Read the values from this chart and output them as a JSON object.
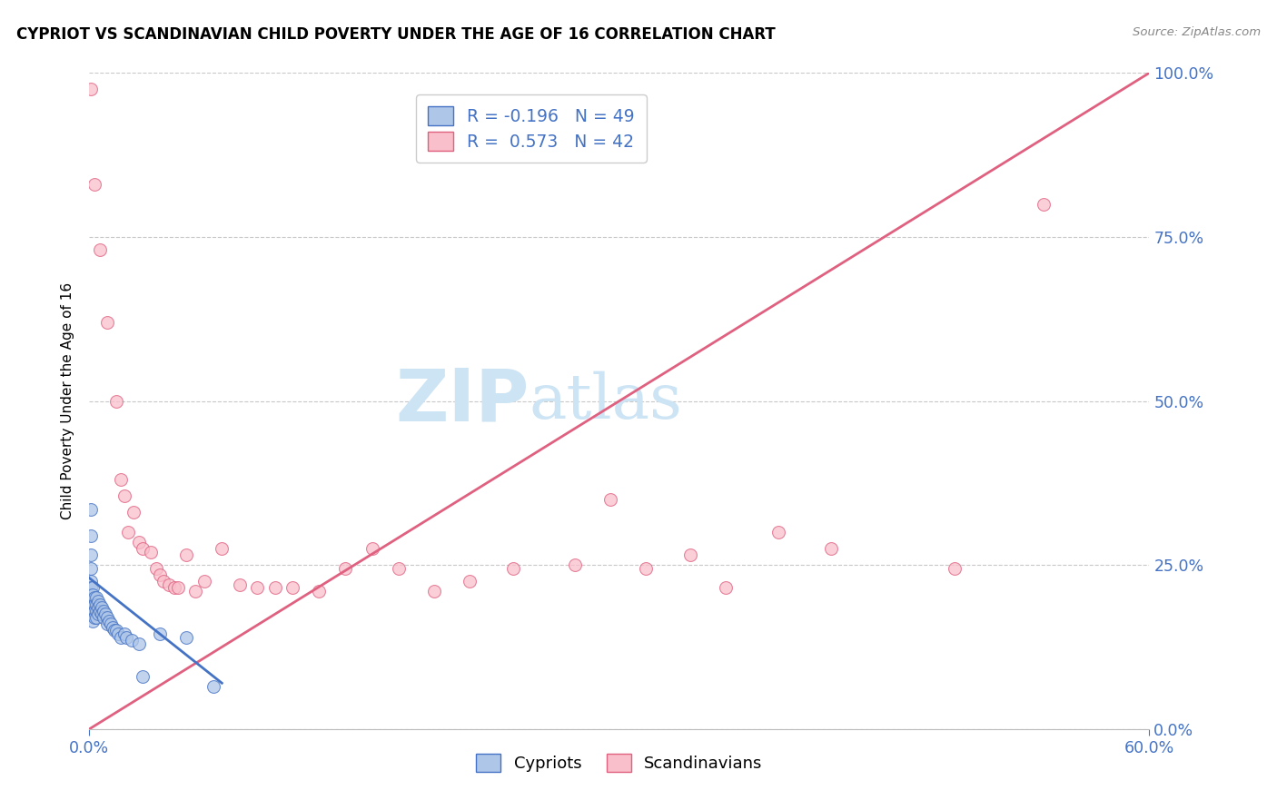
{
  "title": "CYPRIOT VS SCANDINAVIAN CHILD POVERTY UNDER THE AGE OF 16 CORRELATION CHART",
  "source": "Source: ZipAtlas.com",
  "ylabel": "Child Poverty Under the Age of 16",
  "xlim": [
    0.0,
    0.6
  ],
  "ylim": [
    0.0,
    1.0
  ],
  "yticks": [
    0.0,
    0.25,
    0.5,
    0.75,
    1.0
  ],
  "yticklabels": [
    "0.0%",
    "25.0%",
    "50.0%",
    "75.0%",
    "100.0%"
  ],
  "xtick_vals": [
    0.0,
    0.6
  ],
  "xtick_labels": [
    "0.0%",
    "60.0%"
  ],
  "tick_color": "#4472c4",
  "grid_color": "#c8c8c8",
  "bg_color": "#ffffff",
  "watermark_zip": "ZIP",
  "watermark_atlas": "atlas",
  "watermark_color": "#cde4f5",
  "cypriot_fill": "#aec6e8",
  "cypriot_edge": "#4472c4",
  "scand_fill": "#f9bfca",
  "scand_edge": "#e06080",
  "blue_line_color": "#4472c4",
  "pink_line_color": "#e06080",
  "leg1_r": "R = -0.196",
  "leg1_n": "N = 49",
  "leg2_r": "R =  0.573",
  "leg2_n": "N = 42",
  "legend_bottom_labels": [
    "Cypriots",
    "Scandinavians"
  ],
  "cypriot_pts": [
    [
      0.001,
      0.335
    ],
    [
      0.001,
      0.295
    ],
    [
      0.001,
      0.265
    ],
    [
      0.001,
      0.245
    ],
    [
      0.001,
      0.225
    ],
    [
      0.001,
      0.215
    ],
    [
      0.001,
      0.205
    ],
    [
      0.001,
      0.195
    ],
    [
      0.002,
      0.215
    ],
    [
      0.002,
      0.205
    ],
    [
      0.002,
      0.195
    ],
    [
      0.002,
      0.185
    ],
    [
      0.002,
      0.175
    ],
    [
      0.002,
      0.165
    ],
    [
      0.003,
      0.2
    ],
    [
      0.003,
      0.19
    ],
    [
      0.003,
      0.18
    ],
    [
      0.003,
      0.17
    ],
    [
      0.004,
      0.2
    ],
    [
      0.004,
      0.19
    ],
    [
      0.004,
      0.18
    ],
    [
      0.004,
      0.17
    ],
    [
      0.005,
      0.195
    ],
    [
      0.005,
      0.185
    ],
    [
      0.005,
      0.175
    ],
    [
      0.006,
      0.19
    ],
    [
      0.006,
      0.18
    ],
    [
      0.007,
      0.185
    ],
    [
      0.007,
      0.175
    ],
    [
      0.008,
      0.18
    ],
    [
      0.008,
      0.17
    ],
    [
      0.009,
      0.175
    ],
    [
      0.01,
      0.17
    ],
    [
      0.01,
      0.16
    ],
    [
      0.011,
      0.165
    ],
    [
      0.012,
      0.16
    ],
    [
      0.013,
      0.155
    ],
    [
      0.014,
      0.15
    ],
    [
      0.015,
      0.15
    ],
    [
      0.016,
      0.145
    ],
    [
      0.018,
      0.14
    ],
    [
      0.02,
      0.145
    ],
    [
      0.021,
      0.14
    ],
    [
      0.024,
      0.135
    ],
    [
      0.028,
      0.13
    ],
    [
      0.03,
      0.08
    ],
    [
      0.04,
      0.145
    ],
    [
      0.055,
      0.14
    ],
    [
      0.07,
      0.065
    ]
  ],
  "scand_pts": [
    [
      0.001,
      0.975
    ],
    [
      0.003,
      0.83
    ],
    [
      0.006,
      0.73
    ],
    [
      0.01,
      0.62
    ],
    [
      0.015,
      0.5
    ],
    [
      0.018,
      0.38
    ],
    [
      0.02,
      0.355
    ],
    [
      0.022,
      0.3
    ],
    [
      0.025,
      0.33
    ],
    [
      0.028,
      0.285
    ],
    [
      0.03,
      0.275
    ],
    [
      0.035,
      0.27
    ],
    [
      0.038,
      0.245
    ],
    [
      0.04,
      0.235
    ],
    [
      0.042,
      0.225
    ],
    [
      0.045,
      0.22
    ],
    [
      0.048,
      0.215
    ],
    [
      0.05,
      0.215
    ],
    [
      0.055,
      0.265
    ],
    [
      0.06,
      0.21
    ],
    [
      0.065,
      0.225
    ],
    [
      0.075,
      0.275
    ],
    [
      0.085,
      0.22
    ],
    [
      0.095,
      0.215
    ],
    [
      0.105,
      0.215
    ],
    [
      0.115,
      0.215
    ],
    [
      0.13,
      0.21
    ],
    [
      0.145,
      0.245
    ],
    [
      0.16,
      0.275
    ],
    [
      0.175,
      0.245
    ],
    [
      0.195,
      0.21
    ],
    [
      0.215,
      0.225
    ],
    [
      0.24,
      0.245
    ],
    [
      0.275,
      0.25
    ],
    [
      0.295,
      0.35
    ],
    [
      0.315,
      0.245
    ],
    [
      0.34,
      0.265
    ],
    [
      0.36,
      0.215
    ],
    [
      0.39,
      0.3
    ],
    [
      0.42,
      0.275
    ],
    [
      0.49,
      0.245
    ],
    [
      0.54,
      0.8
    ]
  ],
  "scand_trendline": [
    [
      0.0,
      0.0
    ],
    [
      0.6,
      1.0
    ]
  ],
  "cypriot_trendline_x": [
    0.0,
    0.075
  ],
  "cypriot_trendline_y": [
    0.23,
    0.07
  ]
}
